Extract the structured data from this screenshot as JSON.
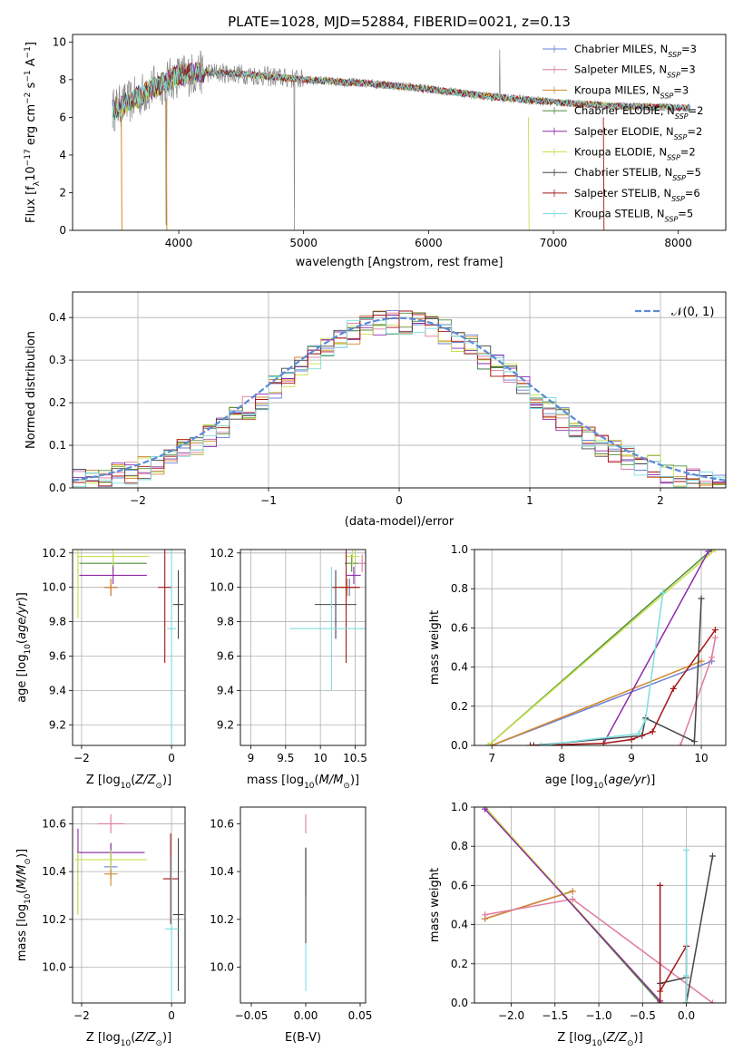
{
  "page": {
    "title": "PLATE=1028, MJD=52884, FIBERID=0021, z=0.13"
  },
  "colors": {
    "chabrier_miles": "#6a7fd6",
    "salpeter_miles": "#e07aa0",
    "kroupa_miles": "#d4882a",
    "chabrier_elodie": "#4e8f3a",
    "salpeter_elodie": "#8e2ba8",
    "kroupa_elodie": "#c8e04a",
    "chabrier_stelib": "#444444",
    "salpeter_stelib": "#a51616",
    "kroupa_stelib": "#7fdde0",
    "data": "#888888",
    "normal": "#5b8bd6"
  },
  "legend_labels": [
    {
      "key": "chabrier_miles",
      "pre": "Chabrier MILES, N",
      "sub": "SSP",
      "post": "=3"
    },
    {
      "key": "salpeter_miles",
      "pre": "Salpeter MILES, N",
      "sub": "SSP",
      "post": "=3"
    },
    {
      "key": "kroupa_miles",
      "pre": "Kroupa MILES, N",
      "sub": "SSP",
      "post": "=3"
    },
    {
      "key": "chabrier_elodie",
      "pre": "Chabrier ELODIE, N",
      "sub": "SSP",
      "post": "=2"
    },
    {
      "key": "salpeter_elodie",
      "pre": "Salpeter ELODIE, N",
      "sub": "SSP",
      "post": "=2"
    },
    {
      "key": "kroupa_elodie",
      "pre": "Kroupa ELODIE, N",
      "sub": "SSP",
      "post": "=2"
    },
    {
      "key": "chabrier_stelib",
      "pre": "Chabrier STELIB, N",
      "sub": "SSP",
      "post": "=5"
    },
    {
      "key": "salpeter_stelib",
      "pre": "Salpeter STELIB, N",
      "sub": "SSP",
      "post": "=6"
    },
    {
      "key": "kroupa_stelib",
      "pre": "Kroupa STELIB, N",
      "sub": "SSP",
      "post": "=5"
    }
  ],
  "chart_data": [
    {
      "id": "spectrum",
      "type": "line",
      "xlabel": "wavelength [Angstrom, rest frame]",
      "ylabel": "Flux [f_λ10^-17 erg cm^-2 s^-1 A^-1]",
      "xlim": [
        3150,
        8380
      ],
      "ylim": [
        0,
        10.4
      ],
      "xticks": [
        4000,
        5000,
        6000,
        7000,
        8000
      ],
      "yticks": [
        0,
        2,
        4,
        6,
        8,
        10
      ],
      "legend": "top-right",
      "continuum": {
        "x": [
          3470,
          3600,
          3800,
          4000,
          4200,
          4500,
          5000,
          5500,
          6000,
          6500,
          7000,
          7500,
          8100
        ],
        "y": [
          6.4,
          6.8,
          7.6,
          8.2,
          8.4,
          8.3,
          8.0,
          7.8,
          7.5,
          7.1,
          6.8,
          6.6,
          6.5
        ]
      },
      "x_range": [
        3470,
        8100
      ]
    },
    {
      "id": "residuals",
      "type": "line",
      "xlabel": "(data-model)/error",
      "ylabel": "Normed distribution",
      "xlim": [
        -2.5,
        2.5
      ],
      "ylim": [
        0,
        0.46
      ],
      "xticks": [
        -2,
        -1,
        0,
        1,
        2
      ],
      "yticks": [
        0.0,
        0.1,
        0.2,
        0.3,
        0.4
      ],
      "legend_label": "𝒩(0, 1)",
      "legend": "top-right",
      "grid": true,
      "bin_width": 0.1
    },
    {
      "id": "z_age",
      "type": "scatter",
      "xlabel": "Z [log10(Z/Z☉)]",
      "ylabel": "age [log10(age/yr)]",
      "xlim": [
        -2.2,
        0.3
      ],
      "ylim": [
        9.08,
        10.22
      ],
      "xticks": [
        -2,
        0
      ],
      "yticks": [
        9.2,
        9.4,
        9.6,
        9.8,
        10.0,
        10.2
      ],
      "grid": true,
      "points": [
        {
          "s": "chabrier_miles",
          "x": -1.35,
          "y": 10.0,
          "xe": 0.15,
          "ye": 0.05
        },
        {
          "s": "salpeter_miles",
          "x": -1.35,
          "y": 10.0,
          "xe": 0.15,
          "ye": 0.05
        },
        {
          "s": "kroupa_miles",
          "x": -1.35,
          "y": 10.0,
          "xe": 0.15,
          "ye": 0.05
        },
        {
          "s": "chabrier_elodie",
          "x": -1.3,
          "y": 10.14,
          "xe": 0.75,
          "ye": 0.05
        },
        {
          "s": "salpeter_elodie",
          "x": -1.3,
          "y": 10.07,
          "xe": 0.75,
          "ye": 0.05
        },
        {
          "s": "kroupa_elodie",
          "x": -1.3,
          "y": 10.18,
          "xe": 0.8,
          "ye": 0.05
        },
        {
          "s": "chabrier_stelib",
          "x": 0.15,
          "y": 9.9,
          "xe": 0.12,
          "ye": 0.2
        },
        {
          "s": "salpeter_stelib",
          "x": -0.15,
          "y": 10.0,
          "xe": 0.15,
          "ye": 0.44
        },
        {
          "s": "kroupa_stelib",
          "x": 0.0,
          "y": 9.76,
          "xe": 0.1,
          "ye": 0.7
        },
        {
          "s": "kroupa_elodie",
          "x": -2.08,
          "y": 10.1,
          "xe": 0.02,
          "ye": 0.28
        }
      ]
    },
    {
      "id": "mass_age",
      "type": "scatter",
      "xlabel": "mass [log10(M/M☉)]",
      "ylabel": "",
      "xlim": [
        8.85,
        10.65
      ],
      "ylim": [
        9.08,
        10.22
      ],
      "xticks": [
        9.0,
        9.5,
        10.0,
        10.5
      ],
      "yticks": [
        9.2,
        9.4,
        9.6,
        9.8,
        10.0,
        10.2
      ],
      "grid": true,
      "points": [
        {
          "s": "chabrier_miles",
          "x": 10.42,
          "y": 10.0,
          "xe": 0.12,
          "ye": 0.05
        },
        {
          "s": "salpeter_miles",
          "x": 10.6,
          "y": 10.14,
          "xe": 0.05,
          "ye": 0.05
        },
        {
          "s": "kroupa_miles",
          "x": 10.39,
          "y": 10.0,
          "xe": 0.12,
          "ye": 0.05
        },
        {
          "s": "chabrier_elodie",
          "x": 10.45,
          "y": 10.14,
          "xe": 0.1,
          "ye": 0.05
        },
        {
          "s": "salpeter_elodie",
          "x": 10.48,
          "y": 10.07,
          "xe": 0.1,
          "ye": 0.05
        },
        {
          "s": "kroupa_elodie",
          "x": 10.46,
          "y": 10.18,
          "xe": 0.1,
          "ye": 0.05
        },
        {
          "s": "chabrier_stelib",
          "x": 10.22,
          "y": 9.9,
          "xe": 0.3,
          "ye": 0.2
        },
        {
          "s": "salpeter_stelib",
          "x": 10.37,
          "y": 10.0,
          "xe": 0.2,
          "ye": 0.44
        },
        {
          "s": "kroupa_stelib",
          "x": 10.16,
          "y": 9.76,
          "xe": 0.6,
          "ye": 0.36
        }
      ]
    },
    {
      "id": "age_weight",
      "type": "line",
      "xlabel": "age [log10(age/yr)]",
      "ylabel": "mass weight",
      "xlim": [
        6.75,
        10.35
      ],
      "ylim": [
        0,
        1.0
      ],
      "xticks": [
        7,
        8,
        9,
        10
      ],
      "yticks": [
        0.0,
        0.2,
        0.4,
        0.6,
        0.8,
        1.0
      ],
      "grid": true,
      "series": [
        {
          "s": "chabrier_miles",
          "x": [
            7.0,
            10.15
          ],
          "y": [
            0.0,
            0.43
          ]
        },
        {
          "s": "kroupa_miles",
          "x": [
            7.0,
            10.0
          ],
          "y": [
            0.0,
            0.43
          ]
        },
        {
          "s": "salpeter_miles",
          "x": [
            9.7,
            10.15,
            10.2
          ],
          "y": [
            0.0,
            0.45,
            0.55
          ]
        },
        {
          "s": "chabrier_elodie",
          "x": [
            6.95,
            10.15
          ],
          "y": [
            0.0,
            1.0
          ]
        },
        {
          "s": "kroupa_elodie",
          "x": [
            6.95,
            10.2
          ],
          "y": [
            0.0,
            1.0
          ]
        },
        {
          "s": "salpeter_elodie",
          "x": [
            8.6,
            10.1
          ],
          "y": [
            0.01,
            0.99
          ]
        },
        {
          "s": "chabrier_stelib",
          "x": [
            7.6,
            9.15,
            9.2,
            9.9,
            10.0
          ],
          "y": [
            0.0,
            0.05,
            0.14,
            0.02,
            0.75
          ]
        },
        {
          "s": "salpeter_stelib",
          "x": [
            7.55,
            8.6,
            9.0,
            9.3,
            9.6,
            10.2
          ],
          "y": [
            0.0,
            0.01,
            0.03,
            0.07,
            0.29,
            0.59
          ]
        },
        {
          "s": "kroupa_stelib",
          "x": [
            7.7,
            9.1,
            9.2,
            9.45
          ],
          "y": [
            0.0,
            0.06,
            0.13,
            0.78
          ]
        }
      ]
    },
    {
      "id": "z_mass",
      "type": "scatter",
      "xlabel": "Z [log10(Z/Z☉)]",
      "ylabel": "mass [log10(M/M☉)]",
      "xlim": [
        -2.2,
        0.3
      ],
      "ylim": [
        9.85,
        10.67
      ],
      "xticks": [
        -2,
        0
      ],
      "yticks": [
        10.0,
        10.2,
        10.4,
        10.6
      ],
      "grid": true,
      "points": [
        {
          "s": "chabrier_miles",
          "x": -1.35,
          "y": 10.42,
          "xe": 0.15,
          "ye": 0.05
        },
        {
          "s": "salpeter_miles",
          "x": -1.35,
          "y": 10.6,
          "xe": 0.3,
          "ye": 0.04
        },
        {
          "s": "kroupa_miles",
          "x": -1.35,
          "y": 10.39,
          "xe": 0.15,
          "ye": 0.05
        },
        {
          "s": "chabrier_elodie",
          "x": -1.35,
          "y": 10.48,
          "xe": 0.75,
          "ye": 0.04
        },
        {
          "s": "salpeter_elodie",
          "x": -1.35,
          "y": 10.48,
          "xe": 0.75,
          "ye": 0.04
        },
        {
          "s": "kroupa_elodie",
          "x": -1.35,
          "y": 10.45,
          "xe": 0.8,
          "ye": 0.04
        },
        {
          "s": "chabrier_stelib",
          "x": 0.15,
          "y": 10.22,
          "xe": 0.12,
          "ye": 0.32
        },
        {
          "s": "salpeter_stelib",
          "x": -0.02,
          "y": 10.37,
          "xe": 0.17,
          "ye": 0.19
        },
        {
          "s": "kroupa_stelib",
          "x": 0.0,
          "y": 10.16,
          "xe": 0.15,
          "ye": 0.3
        },
        {
          "s": "salpeter_elodie",
          "x": -2.08,
          "y": 10.4,
          "xe": 0.02,
          "ye": 0.18
        },
        {
          "s": "kroupa_elodie",
          "x": -2.08,
          "y": 10.35,
          "xe": 0.02,
          "ye": 0.13
        }
      ]
    },
    {
      "id": "ebv_mass",
      "type": "scatter",
      "xlabel": "E(B-V)",
      "ylabel": "",
      "xlim": [
        -0.06,
        0.055
      ],
      "ylim": [
        9.85,
        10.67
      ],
      "xticks": [
        -0.05,
        0.0,
        0.05
      ],
      "xtick_labels": [
        "−0.05",
        "0.00",
        "0.05"
      ],
      "yticks": [
        10.0,
        10.2,
        10.4,
        10.6
      ],
      "grid": false,
      "points": [
        {
          "s": "salpeter_miles",
          "x": 0.0,
          "y": 10.6,
          "xe": 0.0,
          "ye": 0.04
        },
        {
          "s": "salpeter_stelib",
          "x": 0.0,
          "y": 10.4,
          "xe": 0.0,
          "ye": 0.1
        },
        {
          "s": "kroupa_stelib",
          "x": 0.0,
          "y": 10.2,
          "xe": 0.0,
          "ye": 0.3
        },
        {
          "s": "chabrier_stelib",
          "x": 0.0,
          "y": 10.3,
          "xe": 0.0,
          "ye": 0.2
        }
      ]
    },
    {
      "id": "z_weight",
      "type": "line",
      "xlabel": "Z [log10(Z/Z☉)]",
      "ylabel": "mass weight",
      "xlim": [
        -2.42,
        0.45
      ],
      "ylim": [
        0,
        1.0
      ],
      "xticks": [
        -2.0,
        -1.5,
        -1.0,
        -0.5,
        0.0
      ],
      "xtick_labels": [
        "−2.0",
        "−1.5",
        "−1.0",
        "−0.5",
        "0.0"
      ],
      "yticks": [
        0.0,
        0.2,
        0.4,
        0.6,
        0.8,
        1.0
      ],
      "grid": true,
      "series": [
        {
          "s": "chabrier_miles",
          "x": [
            -2.3,
            -1.3
          ],
          "y": [
            0.43,
            0.57
          ]
        },
        {
          "s": "kroupa_miles",
          "x": [
            -2.3,
            -1.3
          ],
          "y": [
            0.43,
            0.57
          ]
        },
        {
          "s": "salpeter_miles",
          "x": [
            -2.3,
            -1.3,
            0.3
          ],
          "y": [
            0.45,
            0.53,
            0.0
          ]
        },
        {
          "s": "chabrier_elodie",
          "x": [
            -2.3,
            -0.3
          ],
          "y": [
            1.0,
            0.0
          ]
        },
        {
          "s": "kroupa_elodie",
          "x": [
            -2.3,
            -0.3
          ],
          "y": [
            1.0,
            0.01
          ]
        },
        {
          "s": "salpeter_elodie",
          "x": [
            -2.3,
            -0.3
          ],
          "y": [
            0.99,
            0.01
          ]
        },
        {
          "s": "chabrier_stelib",
          "x": [
            -0.3,
            0.0,
            0.0,
            0.3
          ],
          "y": [
            0.1,
            0.13,
            0.0,
            0.75
          ]
        },
        {
          "s": "salpeter_stelib",
          "x": [
            -0.3,
            -0.3,
            -0.3,
            0.0,
            0.0
          ],
          "y": [
            0.6,
            0.0,
            0.06,
            0.29,
            0.0
          ]
        },
        {
          "s": "kroupa_stelib",
          "x": [
            0.0,
            0.0,
            0.0
          ],
          "y": [
            0.78,
            0.0,
            0.14
          ]
        }
      ]
    }
  ]
}
